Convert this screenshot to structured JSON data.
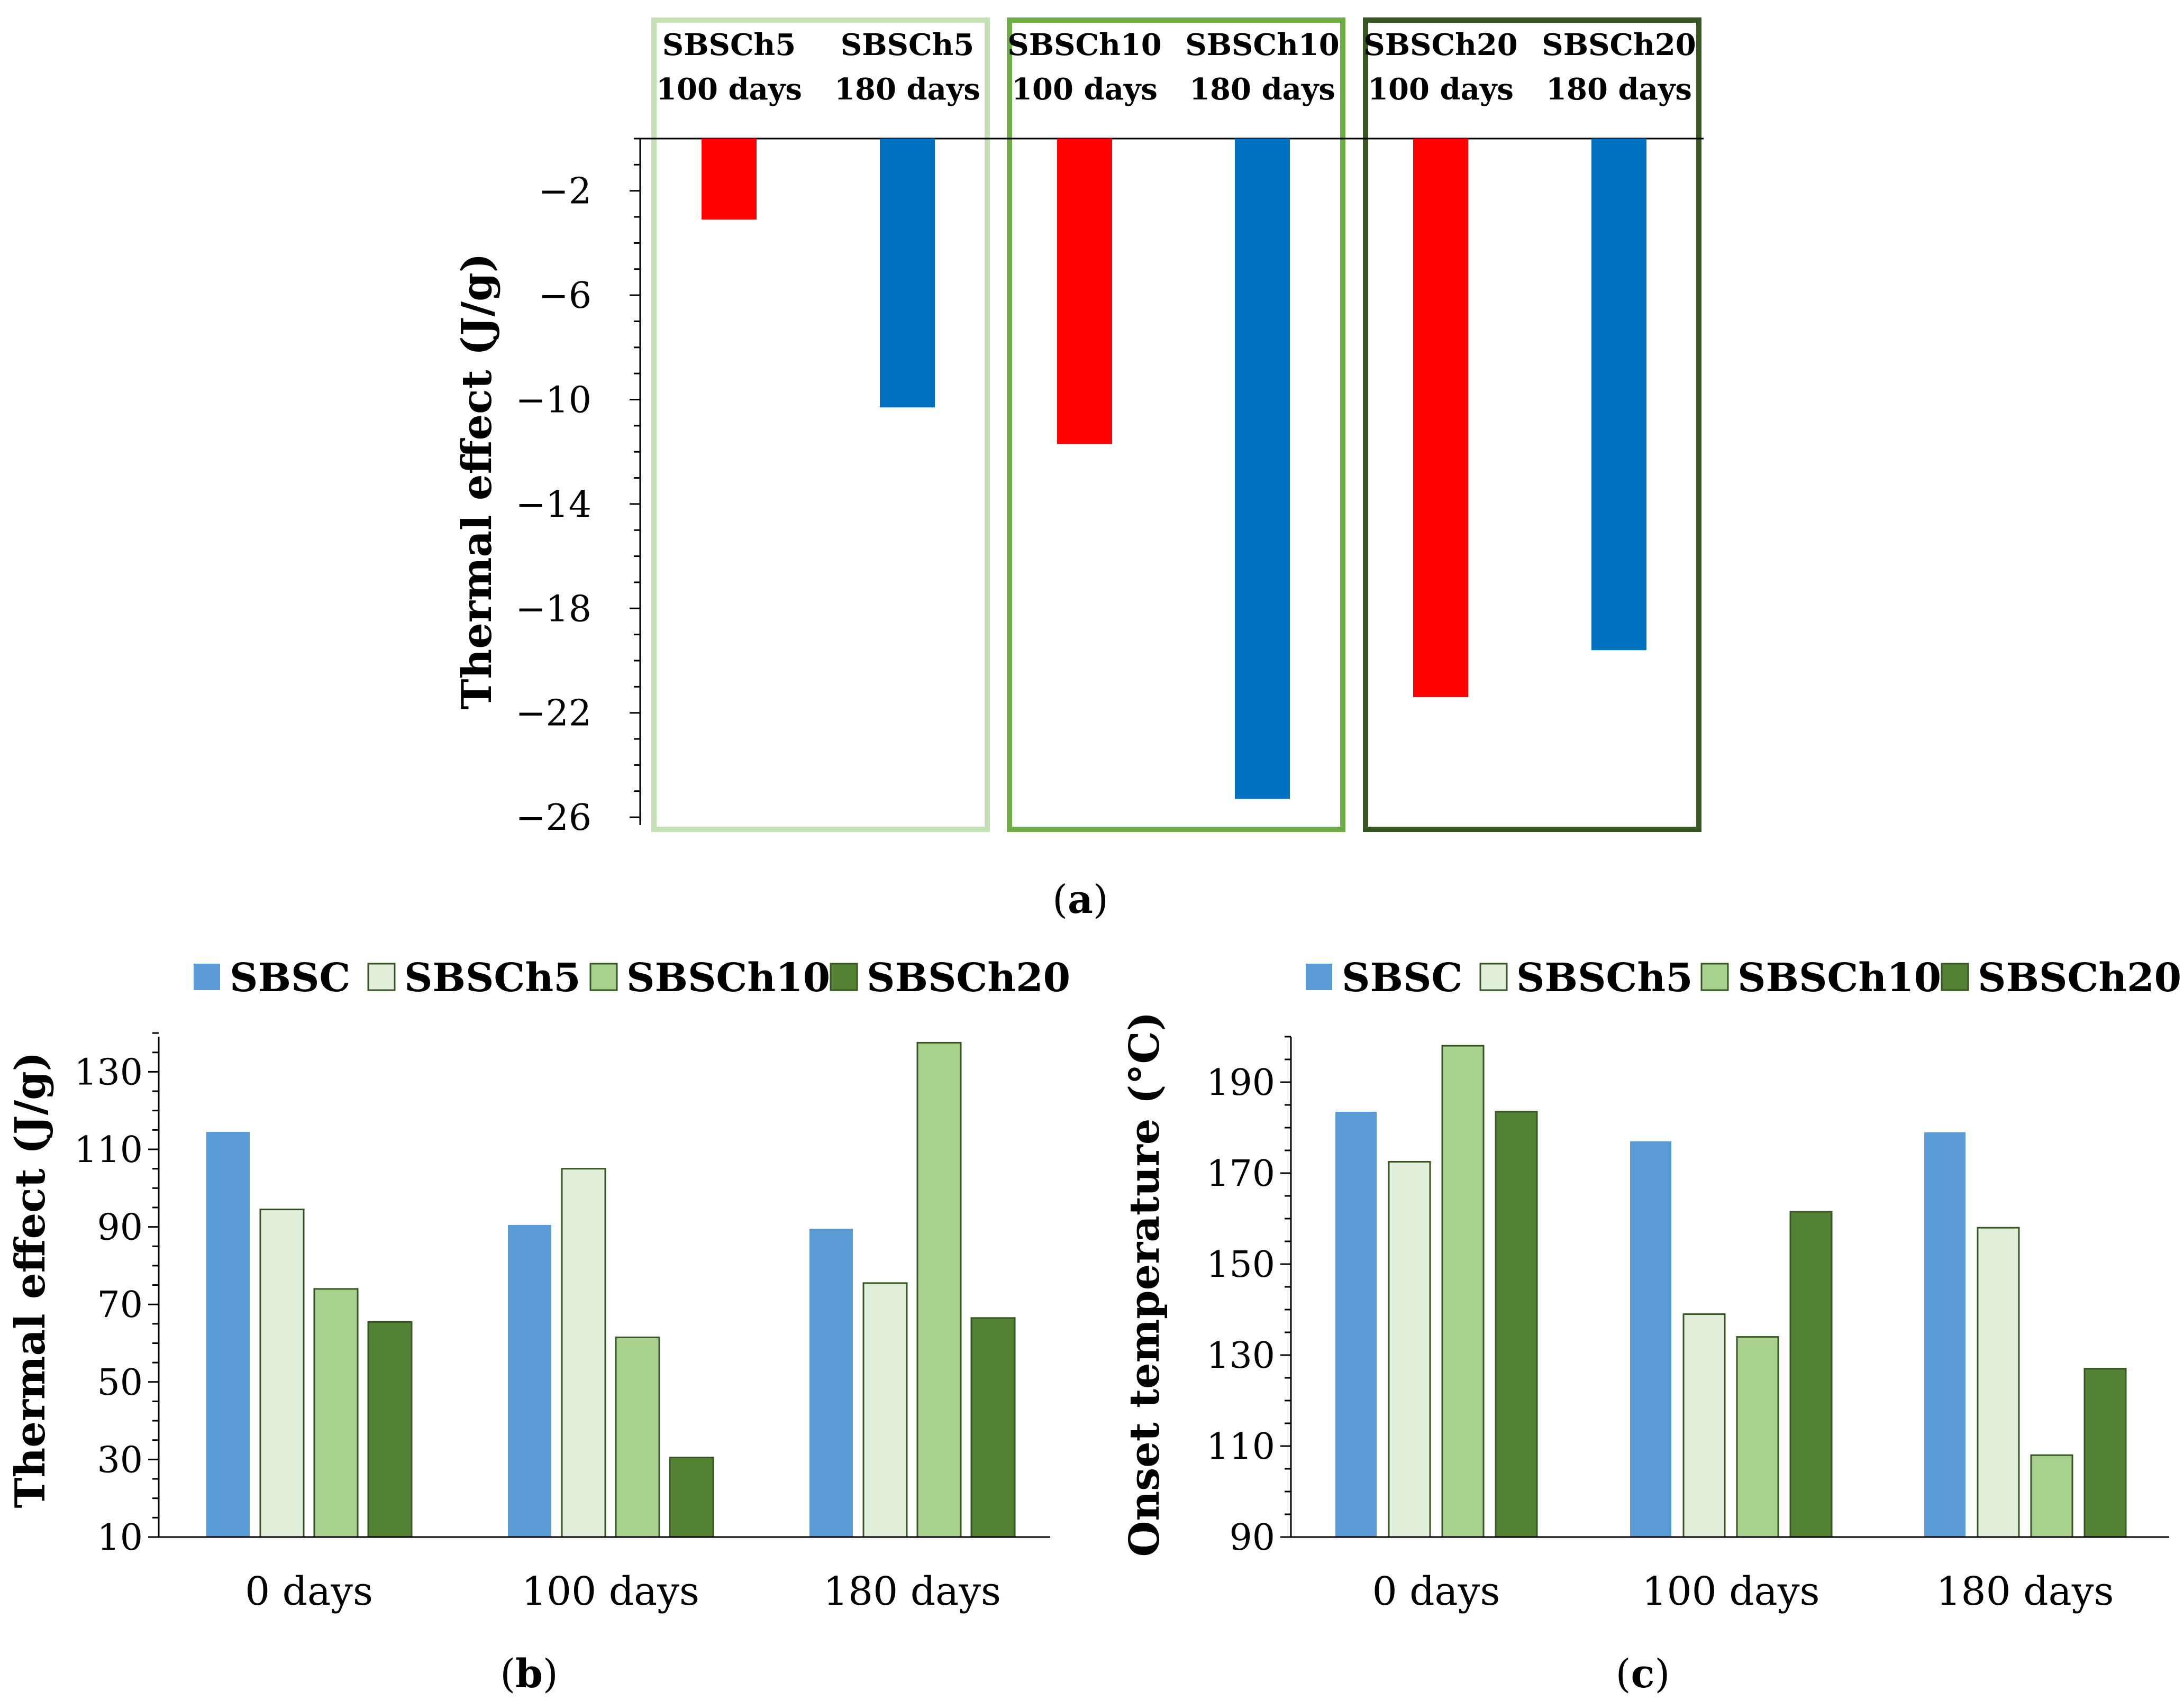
{
  "colors": {
    "red": "#FF0000",
    "blue": "#0070C0",
    "SBSC": "#5B9BD5",
    "SBSCh5": "#E2EFDA",
    "SBSCh10": "#A9D18E",
    "SBSCh20": "#548235",
    "box_light": "#C5E0B4",
    "box_mid": "#70AD47",
    "box_dark": "#385723",
    "edge_dark": "#375623"
  },
  "panels": {
    "a": {
      "label_open": "(",
      "label_letter": "a",
      "label_close": ")"
    },
    "b": {
      "label_open": "(",
      "label_letter": "b",
      "label_close": ")"
    },
    "c": {
      "label_open": "(",
      "label_letter": "c",
      "label_close": ")"
    }
  },
  "chart_data": [
    {
      "id": "a",
      "type": "bar",
      "ylabel": "Thermal effect (J/g)",
      "ylim": [
        -26,
        0
      ],
      "yticks": [
        "−2",
        "−6",
        "−10",
        "−14",
        "−18",
        "−22",
        "−26"
      ],
      "ytick_values": [
        -2,
        -6,
        -10,
        -14,
        -18,
        -22,
        -26
      ],
      "categories": [
        {
          "name": "SBSCh5",
          "period": "100 days"
        },
        {
          "name": "SBSCh5",
          "period": "180 days"
        },
        {
          "name": "SBSCh10",
          "period": "100 days"
        },
        {
          "name": "SBSCh10",
          "period": "180 days"
        },
        {
          "name": "SBSCh20",
          "period": "100 days"
        },
        {
          "name": "SBSCh20",
          "period": "180 days"
        }
      ],
      "values": [
        -3.1,
        -10.3,
        -11.7,
        -25.3,
        -21.4,
        -19.6
      ],
      "bar_colors": [
        "red",
        "blue",
        "red",
        "blue",
        "red",
        "blue"
      ],
      "groups": [
        {
          "name": "SBSCh5",
          "color": "box_light"
        },
        {
          "name": "SBSCh10",
          "color": "box_mid"
        },
        {
          "name": "SBSCh20",
          "color": "box_dark"
        }
      ]
    },
    {
      "id": "b",
      "type": "bar",
      "ylabel": "Thermal effect (J/g)",
      "ylim": [
        10,
        140
      ],
      "yticks": [
        "10",
        "30",
        "50",
        "70",
        "90",
        "110",
        "130"
      ],
      "ytick_values": [
        10,
        30,
        50,
        70,
        90,
        110,
        130
      ],
      "categories": [
        "0 days",
        "100 days",
        "180 days"
      ],
      "legend": [
        "SBSC",
        "SBSCh5",
        "SBSCh10",
        "SBSCh20"
      ],
      "series": [
        {
          "name": "SBSC",
          "values": [
            114.5,
            90.5,
            89.5
          ]
        },
        {
          "name": "SBSCh5",
          "values": [
            94.5,
            105,
            75.5
          ]
        },
        {
          "name": "SBSCh10",
          "values": [
            74,
            61.5,
            137.5
          ]
        },
        {
          "name": "SBSCh20",
          "values": [
            65.5,
            30.5,
            66.5
          ]
        }
      ]
    },
    {
      "id": "c",
      "type": "bar",
      "ylabel": "Onset temperature (°C)",
      "ylim": [
        90,
        200
      ],
      "yticks": [
        "90",
        "110",
        "130",
        "150",
        "170",
        "190"
      ],
      "ytick_values": [
        90,
        110,
        130,
        150,
        170,
        190
      ],
      "categories": [
        "0 days",
        "100 days",
        "180 days"
      ],
      "legend": [
        "SBSC",
        "SBSCh5",
        "SBSCh10",
        "SBSCh20"
      ],
      "series": [
        {
          "name": "SBSC",
          "values": [
            183.5,
            177,
            179
          ]
        },
        {
          "name": "SBSCh5",
          "values": [
            172.5,
            139,
            158
          ]
        },
        {
          "name": "SBSCh10",
          "values": [
            198,
            134,
            108
          ]
        },
        {
          "name": "SBSCh20",
          "values": [
            183.5,
            161.5,
            127
          ]
        }
      ]
    }
  ]
}
